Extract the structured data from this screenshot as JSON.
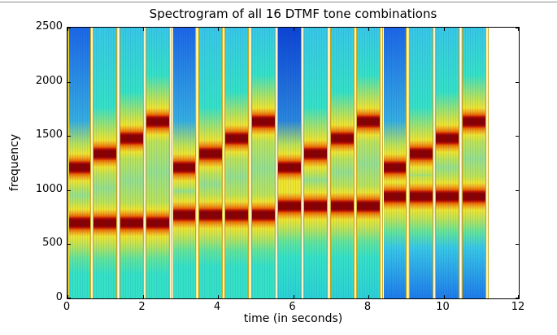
{
  "window": {
    "background": "#ffffff",
    "top_edge_color": "#8c8c8c"
  },
  "chart_data": {
    "type": "heatmap",
    "title": "Spectrogram of all 16 DTMF tone combinations",
    "xlabel": "time (in seconds)",
    "ylabel": "frequency",
    "xlim": [
      0,
      12
    ],
    "ylim": [
      0,
      2500
    ],
    "xticks": [
      0,
      2,
      4,
      6,
      8,
      10,
      12
    ],
    "yticks": [
      0,
      500,
      1000,
      1500,
      2000,
      2500
    ],
    "grid": false,
    "legend": "none",
    "colormap": "jet",
    "tick_direction": "in",
    "dtmf_row_freqs_hz": [
      697,
      770,
      852,
      941
    ],
    "dtmf_col_freqs_hz": [
      1209,
      1336,
      1477,
      1633
    ],
    "tone_slot_seconds": 0.7,
    "tone_gap_seconds": 0.1,
    "total_signal_seconds": 11.2,
    "tones": [
      {
        "index": 1,
        "row_freq_hz": 697,
        "col_freq_hz": 1209,
        "start_s": 0.0
      },
      {
        "index": 2,
        "row_freq_hz": 697,
        "col_freq_hz": 1336,
        "start_s": 0.7
      },
      {
        "index": 3,
        "row_freq_hz": 697,
        "col_freq_hz": 1477,
        "start_s": 1.4
      },
      {
        "index": 4,
        "row_freq_hz": 697,
        "col_freq_hz": 1633,
        "start_s": 2.1
      },
      {
        "index": 5,
        "row_freq_hz": 770,
        "col_freq_hz": 1209,
        "start_s": 2.8
      },
      {
        "index": 6,
        "row_freq_hz": 770,
        "col_freq_hz": 1336,
        "start_s": 3.5
      },
      {
        "index": 7,
        "row_freq_hz": 770,
        "col_freq_hz": 1477,
        "start_s": 4.2
      },
      {
        "index": 8,
        "row_freq_hz": 770,
        "col_freq_hz": 1633,
        "start_s": 4.9
      },
      {
        "index": 9,
        "row_freq_hz": 852,
        "col_freq_hz": 1209,
        "start_s": 5.6
      },
      {
        "index": 10,
        "row_freq_hz": 852,
        "col_freq_hz": 1336,
        "start_s": 6.3
      },
      {
        "index": 11,
        "row_freq_hz": 852,
        "col_freq_hz": 1477,
        "start_s": 7.0
      },
      {
        "index": 12,
        "row_freq_hz": 852,
        "col_freq_hz": 1633,
        "start_s": 7.7
      },
      {
        "index": 13,
        "row_freq_hz": 941,
        "col_freq_hz": 1209,
        "start_s": 8.4
      },
      {
        "index": 14,
        "row_freq_hz": 941,
        "col_freq_hz": 1336,
        "start_s": 9.1
      },
      {
        "index": 15,
        "row_freq_hz": 941,
        "col_freq_hz": 1477,
        "start_s": 9.8
      },
      {
        "index": 16,
        "row_freq_hz": 941,
        "col_freq_hz": 1633,
        "start_s": 10.5
      }
    ],
    "layout_hints": {
      "dark_top_tone_index": 9,
      "blue_top_col_freq_hz": 1209,
      "blue_bottom_row_freq_hz": 941
    },
    "palette": {
      "peak_core": "#8a0000",
      "peak_red": "#c41400",
      "orange": "#ea6a00",
      "amber": "#f2a81c",
      "yellow": "#efe52f",
      "yellow_green": "#bce356",
      "mid_green": "#96e08c",
      "green": "#62e49a",
      "turquoise": "#35e2c6",
      "bottom_cyan": "#2bd2d4",
      "cyan": "#38c8e6",
      "cyan_blue": "#35aee0",
      "blue": "#1c66e6",
      "dark_blue": "#0d44d4",
      "dark_mid_blue": "#2a86dc",
      "bottom_blue": "#1e7ce8",
      "gap_white": "#ffffff",
      "gap_yellow": "#eeda3e",
      "gap_brown": "#a97c10",
      "onset_yellow": "#e8d838",
      "onset_brown": "#caa01a"
    }
  }
}
